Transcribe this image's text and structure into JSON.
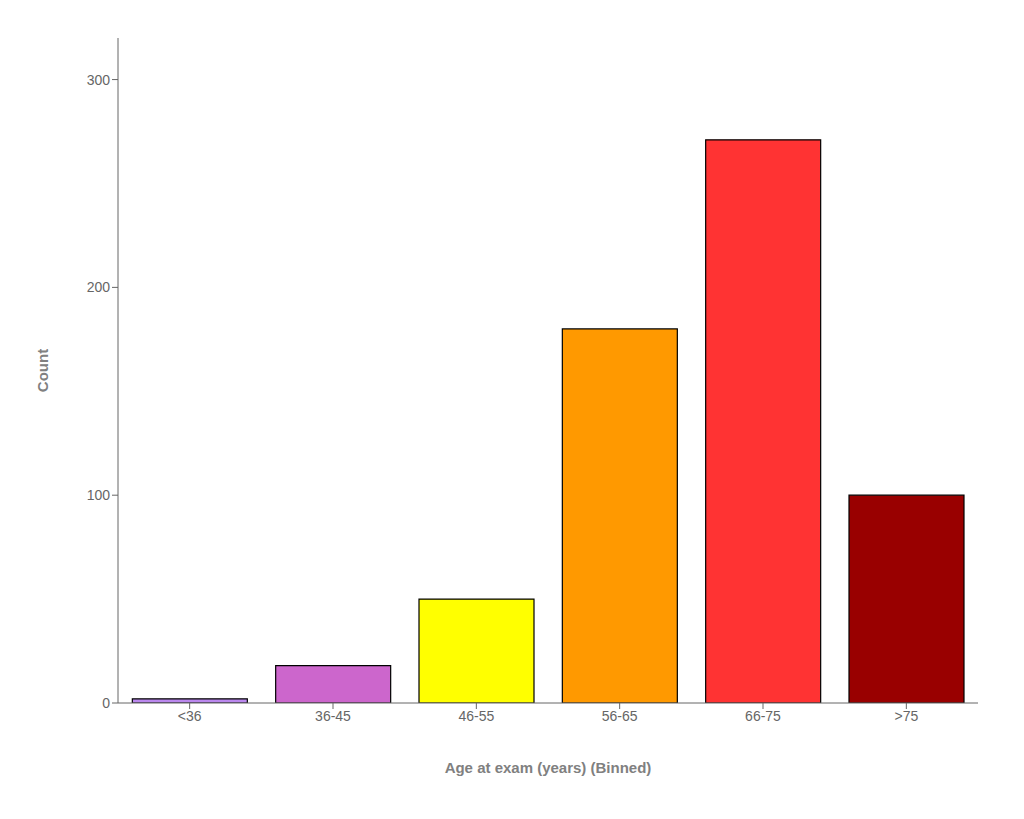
{
  "chart_data": {
    "type": "bar",
    "categories": [
      "<36",
      "36-45",
      "46-55",
      "56-65",
      "66-75",
      ">75"
    ],
    "values": [
      2,
      18,
      50,
      180,
      271,
      100
    ],
    "colors": [
      "#BB88EE",
      "#CC66CC",
      "#FFFF00",
      "#FF9900",
      "#FF3333",
      "#990000"
    ],
    "xlabel": "Age at exam (years) (Binned)",
    "ylabel": "Count",
    "ylim": [
      0,
      320
    ],
    "yticks": [
      0,
      100,
      200,
      300
    ],
    "grid": false
  }
}
